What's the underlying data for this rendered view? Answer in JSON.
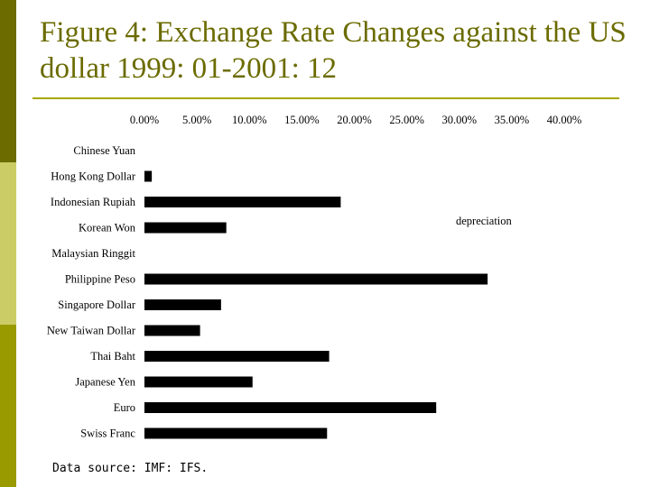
{
  "slide": {
    "title": "Figure 4: Exchange Rate Changes against the US dollar 1999: 01-2001: 12",
    "source": "Data source: IMF: IFS."
  },
  "colors": {
    "title": "#6b6b00",
    "bars": "#000000",
    "sidebar_dark": "#6b6b00",
    "sidebar_light": "#cccc66",
    "sidebar_mid": "#999900"
  },
  "chart_data": {
    "type": "bar",
    "orientation": "horizontal",
    "title": "",
    "xlabel": "",
    "ylabel": "",
    "xlim": [
      0,
      40
    ],
    "x_axis_position": "top",
    "ticks": [
      "0.00%",
      "5.00%",
      "10.00%",
      "15.00%",
      "20.00%",
      "25.00%",
      "30.00%",
      "35.00%",
      "40.00%"
    ],
    "tick_values": [
      0,
      5,
      10,
      15,
      20,
      25,
      30,
      35,
      40
    ],
    "categories": [
      "Chinese Yuan",
      "Hong Kong Dollar",
      "Indonesian Rupiah",
      "Korean Won",
      "Malaysian Ringgit",
      "Philippine Peso",
      "Singapore Dollar",
      "New Taiwan Dollar",
      "Thai Baht",
      "Japanese Yen",
      "Euro",
      "Swiss Franc"
    ],
    "values": [
      0.0,
      0.7,
      18.7,
      7.8,
      0.0,
      32.7,
      7.3,
      5.3,
      17.6,
      10.3,
      27.8,
      17.4
    ],
    "annotation": "depreciation",
    "grid": false,
    "legend": "none"
  }
}
